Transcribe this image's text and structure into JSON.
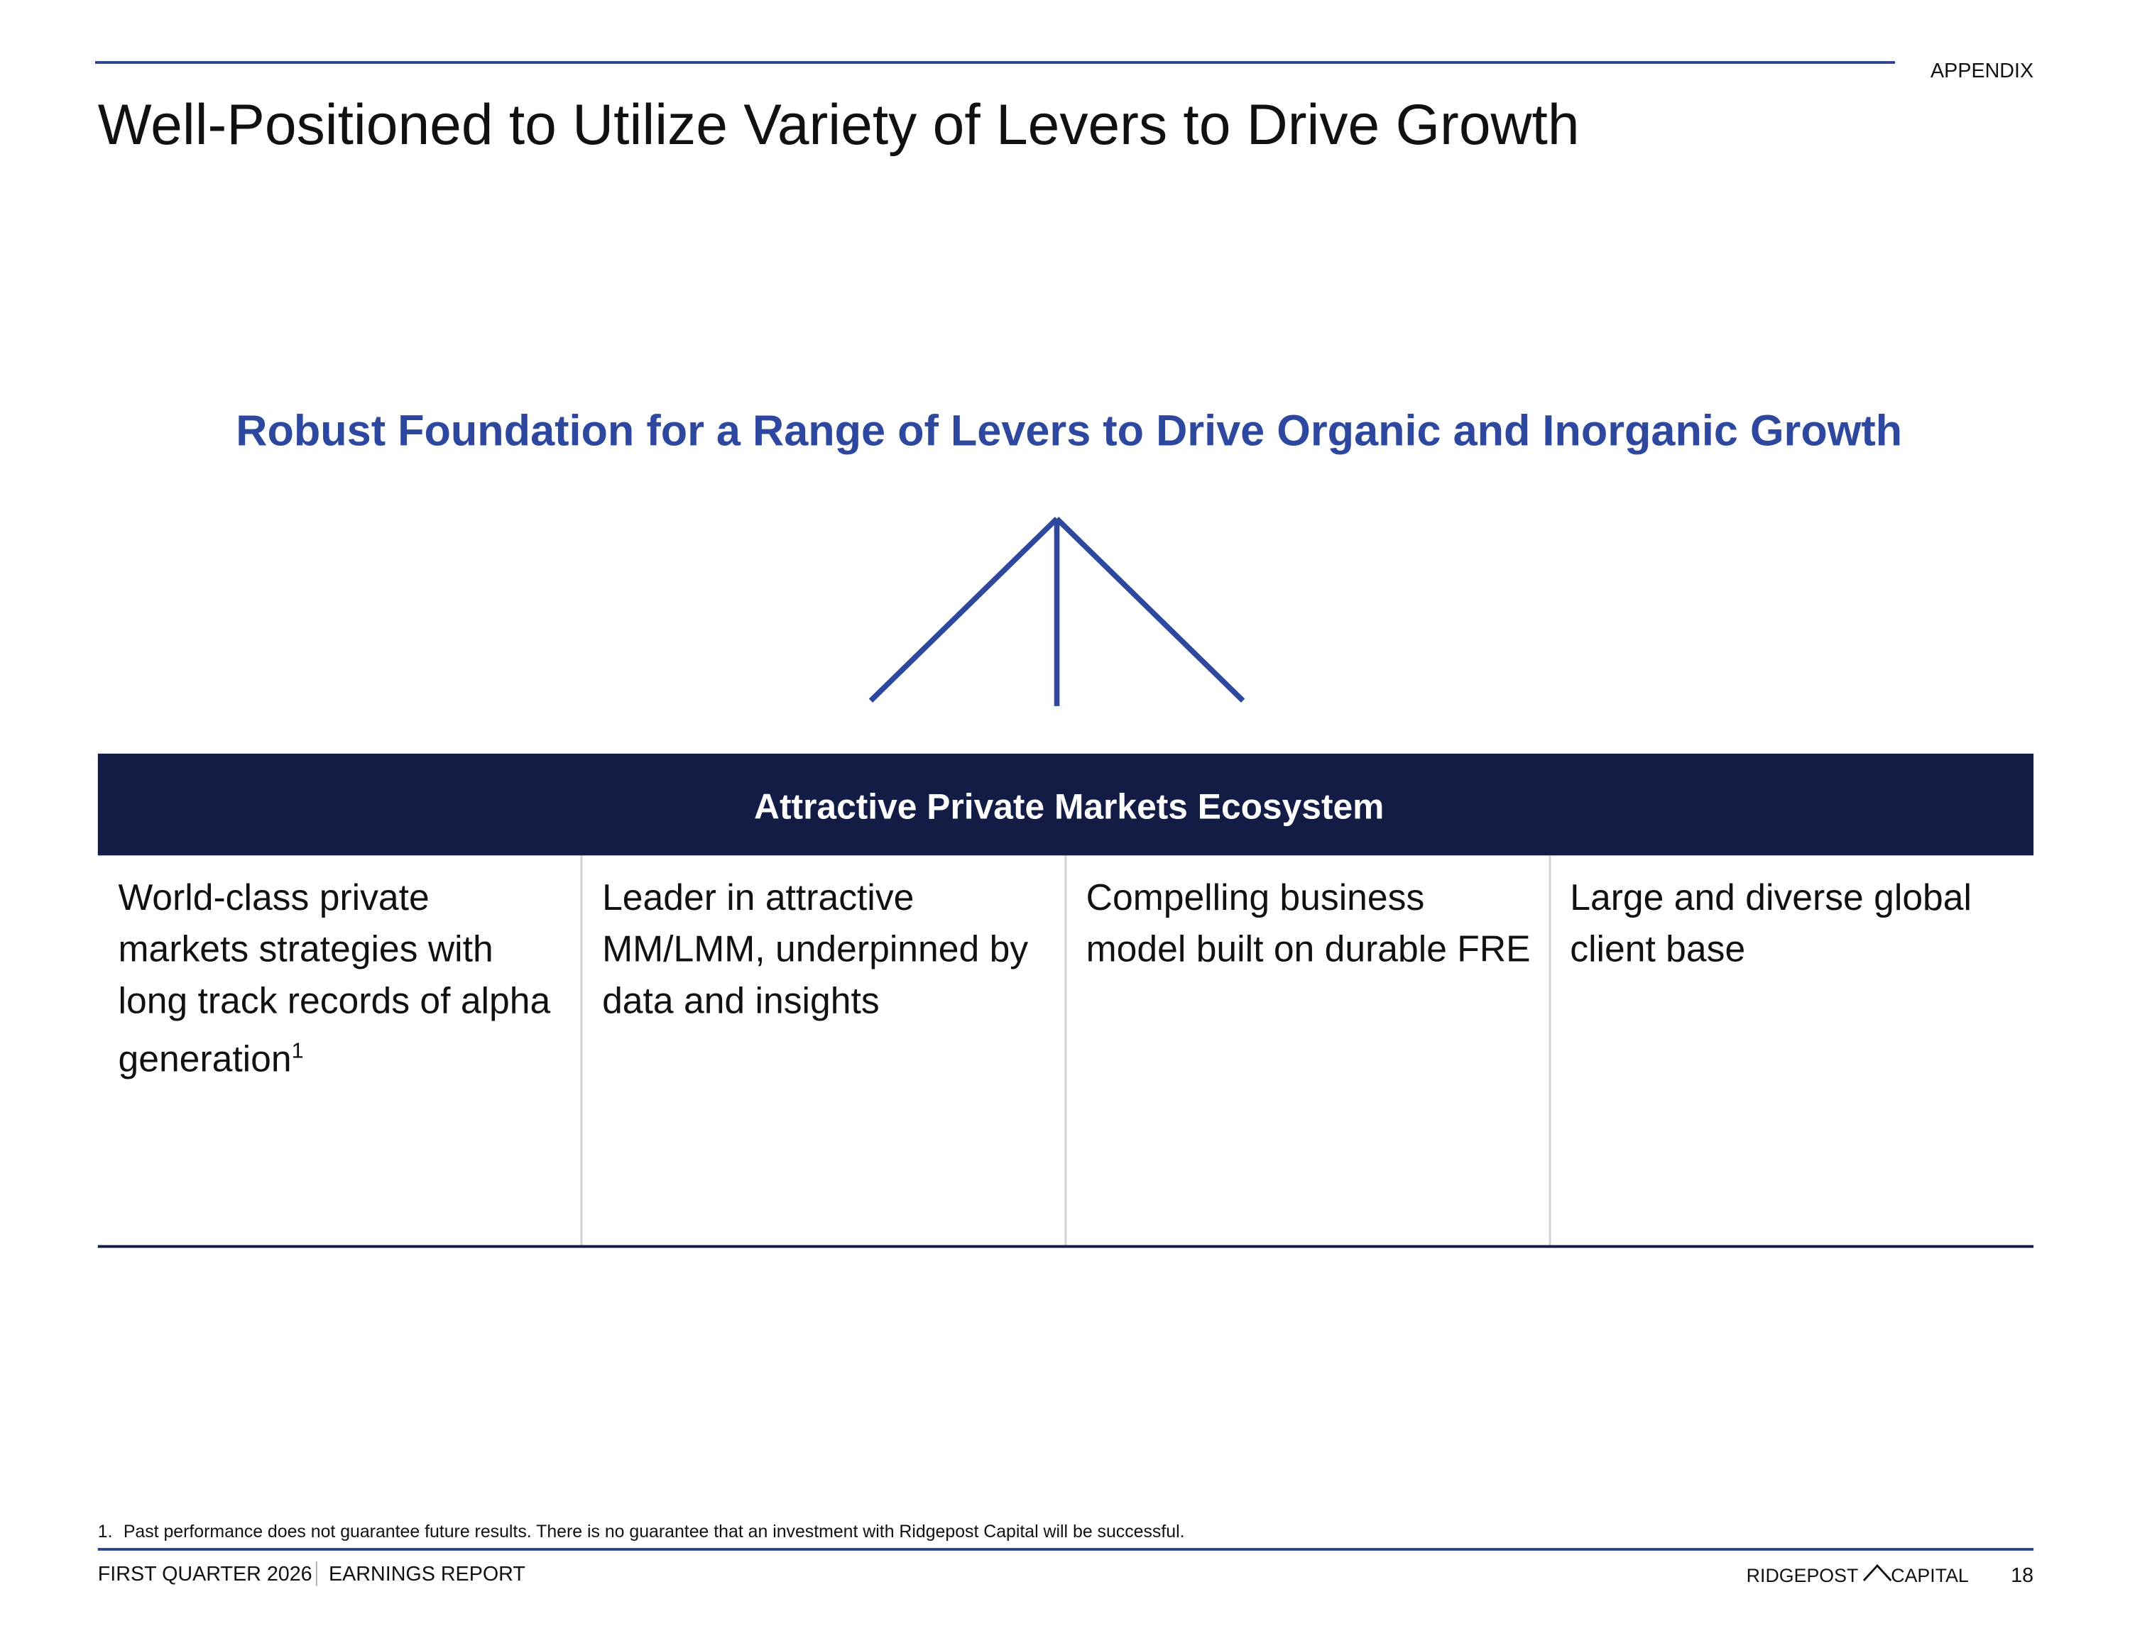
{
  "header": {
    "section": "APPENDIX",
    "title": "Well-Positioned to Utilize Variety of Levers to Drive Growth"
  },
  "subtitle": "Robust Foundation for a Range of Levers to Drive Organic and Inorganic Growth",
  "table": {
    "header": "Attractive Private Markets Ecosystem",
    "cells": [
      {
        "text": "World-class private markets strategies with long track records of alpha generation",
        "footnote_ref": "1"
      },
      {
        "text": "Leader in attractive MM/LMM, underpinned by data and insights"
      },
      {
        "text": "Compelling business model built on durable FRE"
      },
      {
        "text": "Large and diverse global client base"
      }
    ]
  },
  "footnotes": [
    {
      "number": "1.",
      "text": "Past performance does not guarantee future results. There is no guarantee that an investment with Ridgepost Capital will be successful."
    }
  ],
  "footer": {
    "period": "FIRST QUARTER 2026",
    "report": "EARNINGS REPORT",
    "logo_left": "RIDGEPOST",
    "logo_right": "CAPITAL",
    "page": "18"
  }
}
